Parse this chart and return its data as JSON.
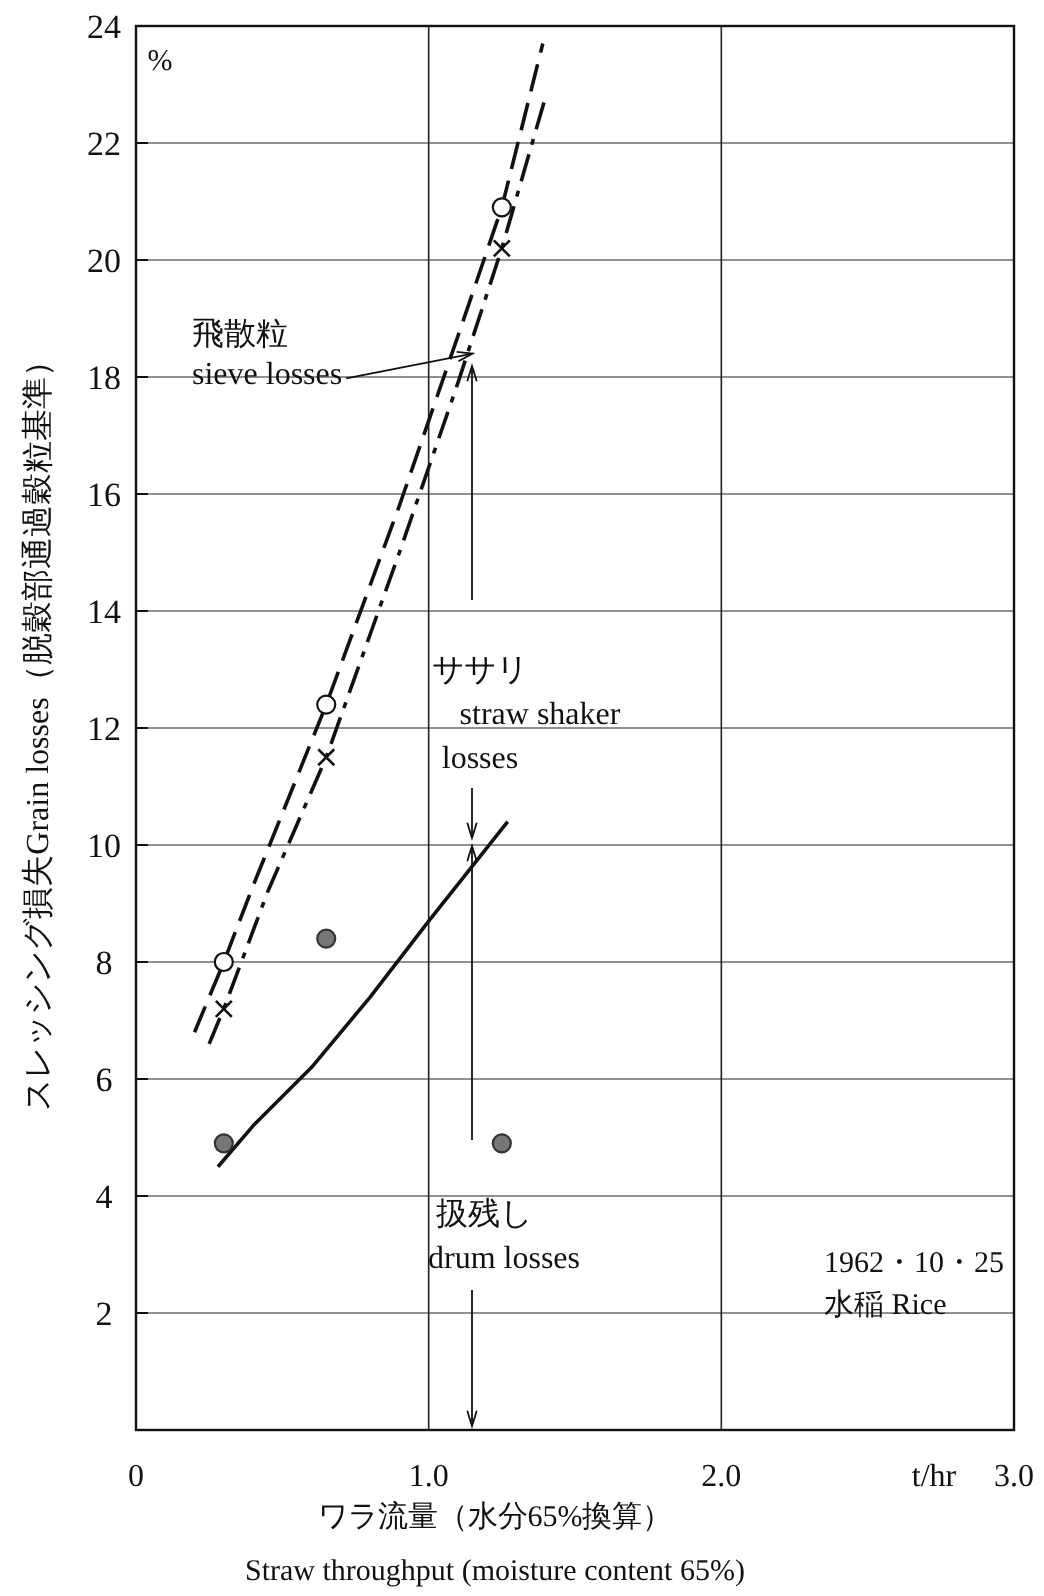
{
  "chart_data": {
    "type": "line",
    "xlabel": "ワラ流量（水分65%換算）\nStraw throughput (moisture content 65%)",
    "ylabel": "スレッシング損失Grain losses（脱穀部通過穀粒基準）",
    "xlim": [
      0,
      3
    ],
    "ylim": [
      0,
      24
    ],
    "xticks": [
      0,
      {
        "value": 1,
        "label": "1.0"
      },
      {
        "value": 2,
        "label": "2.0"
      },
      {
        "value": 3,
        "label": "3.0"
      }
    ],
    "yticks": [
      2,
      4,
      6,
      8,
      10,
      12,
      14,
      16,
      18,
      20,
      22,
      24
    ],
    "grid": true,
    "series": [
      {
        "type": "line",
        "line_style": "dashed",
        "marker": "none",
        "color": "#111111",
        "x": [
          0.2,
          0.3,
          0.4,
          0.65,
          0.9,
          1.1,
          1.25,
          1.39
        ],
        "values": [
          6.8,
          8.0,
          9.3,
          12.4,
          15.8,
          18.7,
          20.9,
          23.7
        ]
      },
      {
        "type": "line",
        "line_style": "dashdot",
        "marker": "none",
        "color": "#111111",
        "x": [
          0.25,
          0.3,
          0.45,
          0.65,
          0.9,
          1.1,
          1.25,
          1.4
        ],
        "values": [
          6.6,
          7.2,
          9.2,
          11.5,
          15.0,
          17.9,
          20.2,
          22.8
        ]
      },
      {
        "type": "line",
        "line_style": "solid",
        "marker": "none",
        "color": "#111111",
        "x": [
          0.28,
          0.4,
          0.6,
          0.8,
          1.0,
          1.27
        ],
        "values": [
          4.5,
          5.2,
          6.2,
          7.4,
          8.7,
          10.4
        ]
      },
      {
        "type": "scatter",
        "marker": "circle",
        "color": "#111111",
        "x": [
          0.3,
          0.65,
          1.25
        ],
        "values": [
          8.0,
          12.4,
          20.9
        ]
      },
      {
        "type": "scatter",
        "marker": "cross",
        "color": "#111111",
        "x": [
          0.3,
          0.65,
          1.25
        ],
        "values": [
          7.2,
          11.5,
          20.2
        ]
      },
      {
        "type": "scatter",
        "marker": "circle",
        "color": "#777777",
        "x": [
          0.3,
          0.65,
          1.25
        ],
        "values": [
          4.9,
          8.4,
          4.9
        ]
      }
    ],
    "annotations": [
      "%",
      "t/hr",
      "飛散粒",
      {
        "text": "sieve losses",
        "x": 1.15,
        "y": 18.4
      },
      "ササリ",
      "straw shaker",
      "losses",
      "扱残し",
      "drum losses",
      "1962・10・25",
      "水稲 Rice"
    ]
  }
}
